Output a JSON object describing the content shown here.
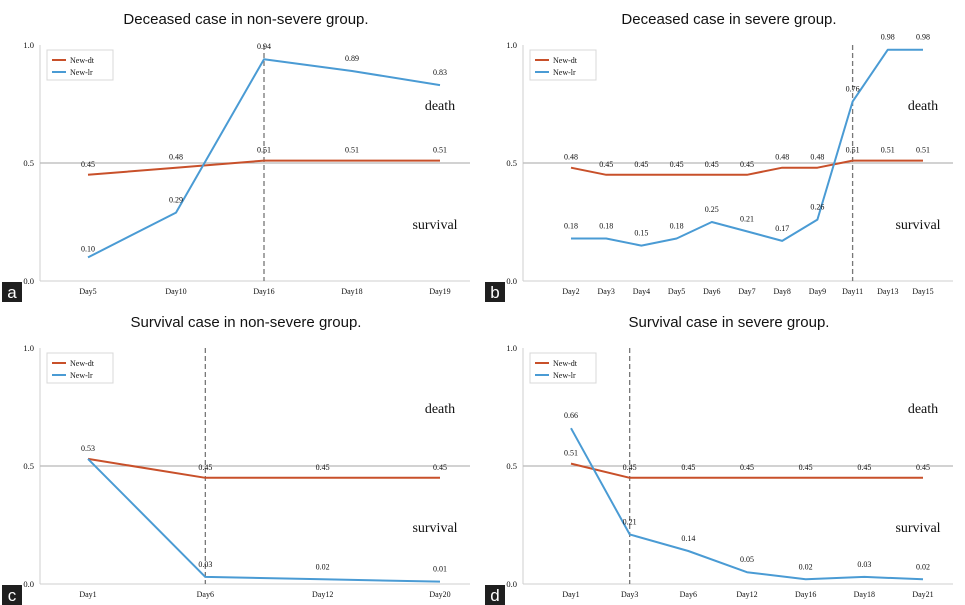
{
  "colors": {
    "new_dt": "#c8502a",
    "new_lr": "#4a9bd4",
    "threshold": "#b8b8b8",
    "axis": "#cfcfcf",
    "vline": "#777777"
  },
  "chart_data": [
    {
      "type": "line",
      "panel": "a",
      "title": "Deceased case in non-severe group.",
      "categories": [
        "Day5",
        "Day10",
        "Day16",
        "Day18",
        "Day19"
      ],
      "series": [
        {
          "name": "New-dt",
          "color": "#c8502a",
          "values": [
            0.45,
            0.48,
            0.51,
            0.51,
            0.51
          ]
        },
        {
          "name": "New-lr",
          "color": "#4a9bd4",
          "values": [
            0.1,
            0.29,
            0.94,
            0.89,
            0.83
          ]
        }
      ],
      "ylim": [
        0,
        1
      ],
      "yticks": [
        "0.0",
        "0.5",
        "1.0"
      ],
      "threshold": 0.5,
      "vline_category": "Day16",
      "region_top": "death",
      "region_bottom": "survival",
      "legend": "top-left"
    },
    {
      "type": "line",
      "panel": "b",
      "title": "Deceased case in severe group.",
      "categories": [
        "Day2",
        "Day3",
        "Day4",
        "Day5",
        "Day6",
        "Day7",
        "Day8",
        "Day9",
        "Day11",
        "Day13",
        "Day15"
      ],
      "series": [
        {
          "name": "New-dt",
          "color": "#c8502a",
          "values": [
            0.48,
            0.45,
            0.45,
            0.45,
            0.45,
            0.45,
            0.48,
            0.48,
            0.51,
            0.51,
            0.51
          ]
        },
        {
          "name": "New-lr",
          "color": "#4a9bd4",
          "values": [
            0.18,
            0.18,
            0.15,
            0.18,
            0.25,
            0.21,
            0.17,
            0.26,
            0.76,
            0.98,
            0.98
          ]
        }
      ],
      "ylim": [
        0,
        1
      ],
      "yticks": [
        "0.0",
        "0.5",
        "1.0"
      ],
      "threshold": 0.5,
      "vline_category": "Day11",
      "region_top": "death",
      "region_bottom": "survival",
      "legend": "top-left"
    },
    {
      "type": "line",
      "panel": "c",
      "title": "Survival case in non-severe group.",
      "categories": [
        "Day1",
        "Day6",
        "Day12",
        "Day20"
      ],
      "series": [
        {
          "name": "New-dt",
          "color": "#c8502a",
          "values": [
            0.53,
            0.45,
            0.45,
            0.45
          ]
        },
        {
          "name": "New-lr",
          "color": "#4a9bd4",
          "values": [
            0.53,
            0.03,
            0.02,
            0.01
          ]
        }
      ],
      "ylim": [
        0,
        1
      ],
      "yticks": [
        "0.0",
        "0.5",
        "1.0"
      ],
      "threshold": 0.5,
      "vline_category": "Day6",
      "region_top": "death",
      "region_bottom": "survival",
      "legend": "top-left",
      "shared_first_label": true
    },
    {
      "type": "line",
      "panel": "d",
      "title": "Survival case in severe group.",
      "categories": [
        "Day1",
        "Day3",
        "Day6",
        "Day12",
        "Day16",
        "Day18",
        "Day21"
      ],
      "series": [
        {
          "name": "New-dt",
          "color": "#c8502a",
          "values": [
            0.51,
            0.45,
            0.45,
            0.45,
            0.45,
            0.45,
            0.45
          ]
        },
        {
          "name": "New-lr",
          "color": "#4a9bd4",
          "values": [
            0.66,
            0.21,
            0.14,
            0.05,
            0.02,
            0.03,
            0.02
          ]
        }
      ],
      "ylim": [
        0,
        1
      ],
      "yticks": [
        "0.0",
        "0.5",
        "1.0"
      ],
      "threshold": 0.5,
      "vline_category": "Day3",
      "region_top": "death",
      "region_bottom": "survival",
      "legend": "top-left"
    }
  ]
}
